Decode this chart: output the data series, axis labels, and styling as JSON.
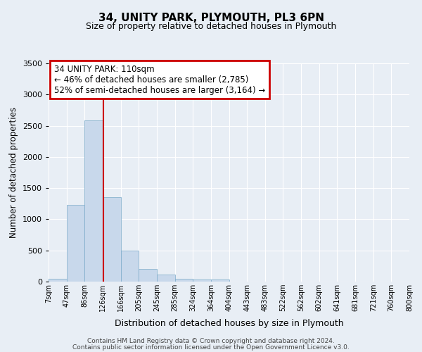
{
  "title": "34, UNITY PARK, PLYMOUTH, PL3 6PN",
  "subtitle": "Size of property relative to detached houses in Plymouth",
  "xlabel": "Distribution of detached houses by size in Plymouth",
  "ylabel": "Number of detached properties",
  "bar_color": "#c8d8eb",
  "bar_edge_color": "#7aaac8",
  "bar_heights": [
    50,
    1230,
    2590,
    1350,
    500,
    200,
    110,
    50,
    30,
    30,
    0,
    0,
    0,
    0,
    0,
    0,
    0,
    0,
    0,
    0
  ],
  "bin_labels": [
    "7sqm",
    "47sqm",
    "86sqm",
    "126sqm",
    "166sqm",
    "205sqm",
    "245sqm",
    "285sqm",
    "324sqm",
    "364sqm",
    "404sqm",
    "443sqm",
    "483sqm",
    "522sqm",
    "562sqm",
    "602sqm",
    "641sqm",
    "681sqm",
    "721sqm",
    "760sqm",
    "800sqm"
  ],
  "ylim": [
    0,
    3500
  ],
  "yticks": [
    0,
    500,
    1000,
    1500,
    2000,
    2500,
    3000,
    3500
  ],
  "vline_x": 2.55,
  "annotation_text": "34 UNITY PARK: 110sqm\n← 46% of detached houses are smaller (2,785)\n52% of semi-detached houses are larger (3,164) →",
  "annotation_box_color": "#ffffff",
  "annotation_box_edge": "#cc0000",
  "footer1": "Contains HM Land Registry data © Crown copyright and database right 2024.",
  "footer2": "Contains public sector information licensed under the Open Government Licence v3.0.",
  "background_color": "#e8eef5",
  "plot_background": "#e8eef5",
  "grid_color": "#ffffff"
}
